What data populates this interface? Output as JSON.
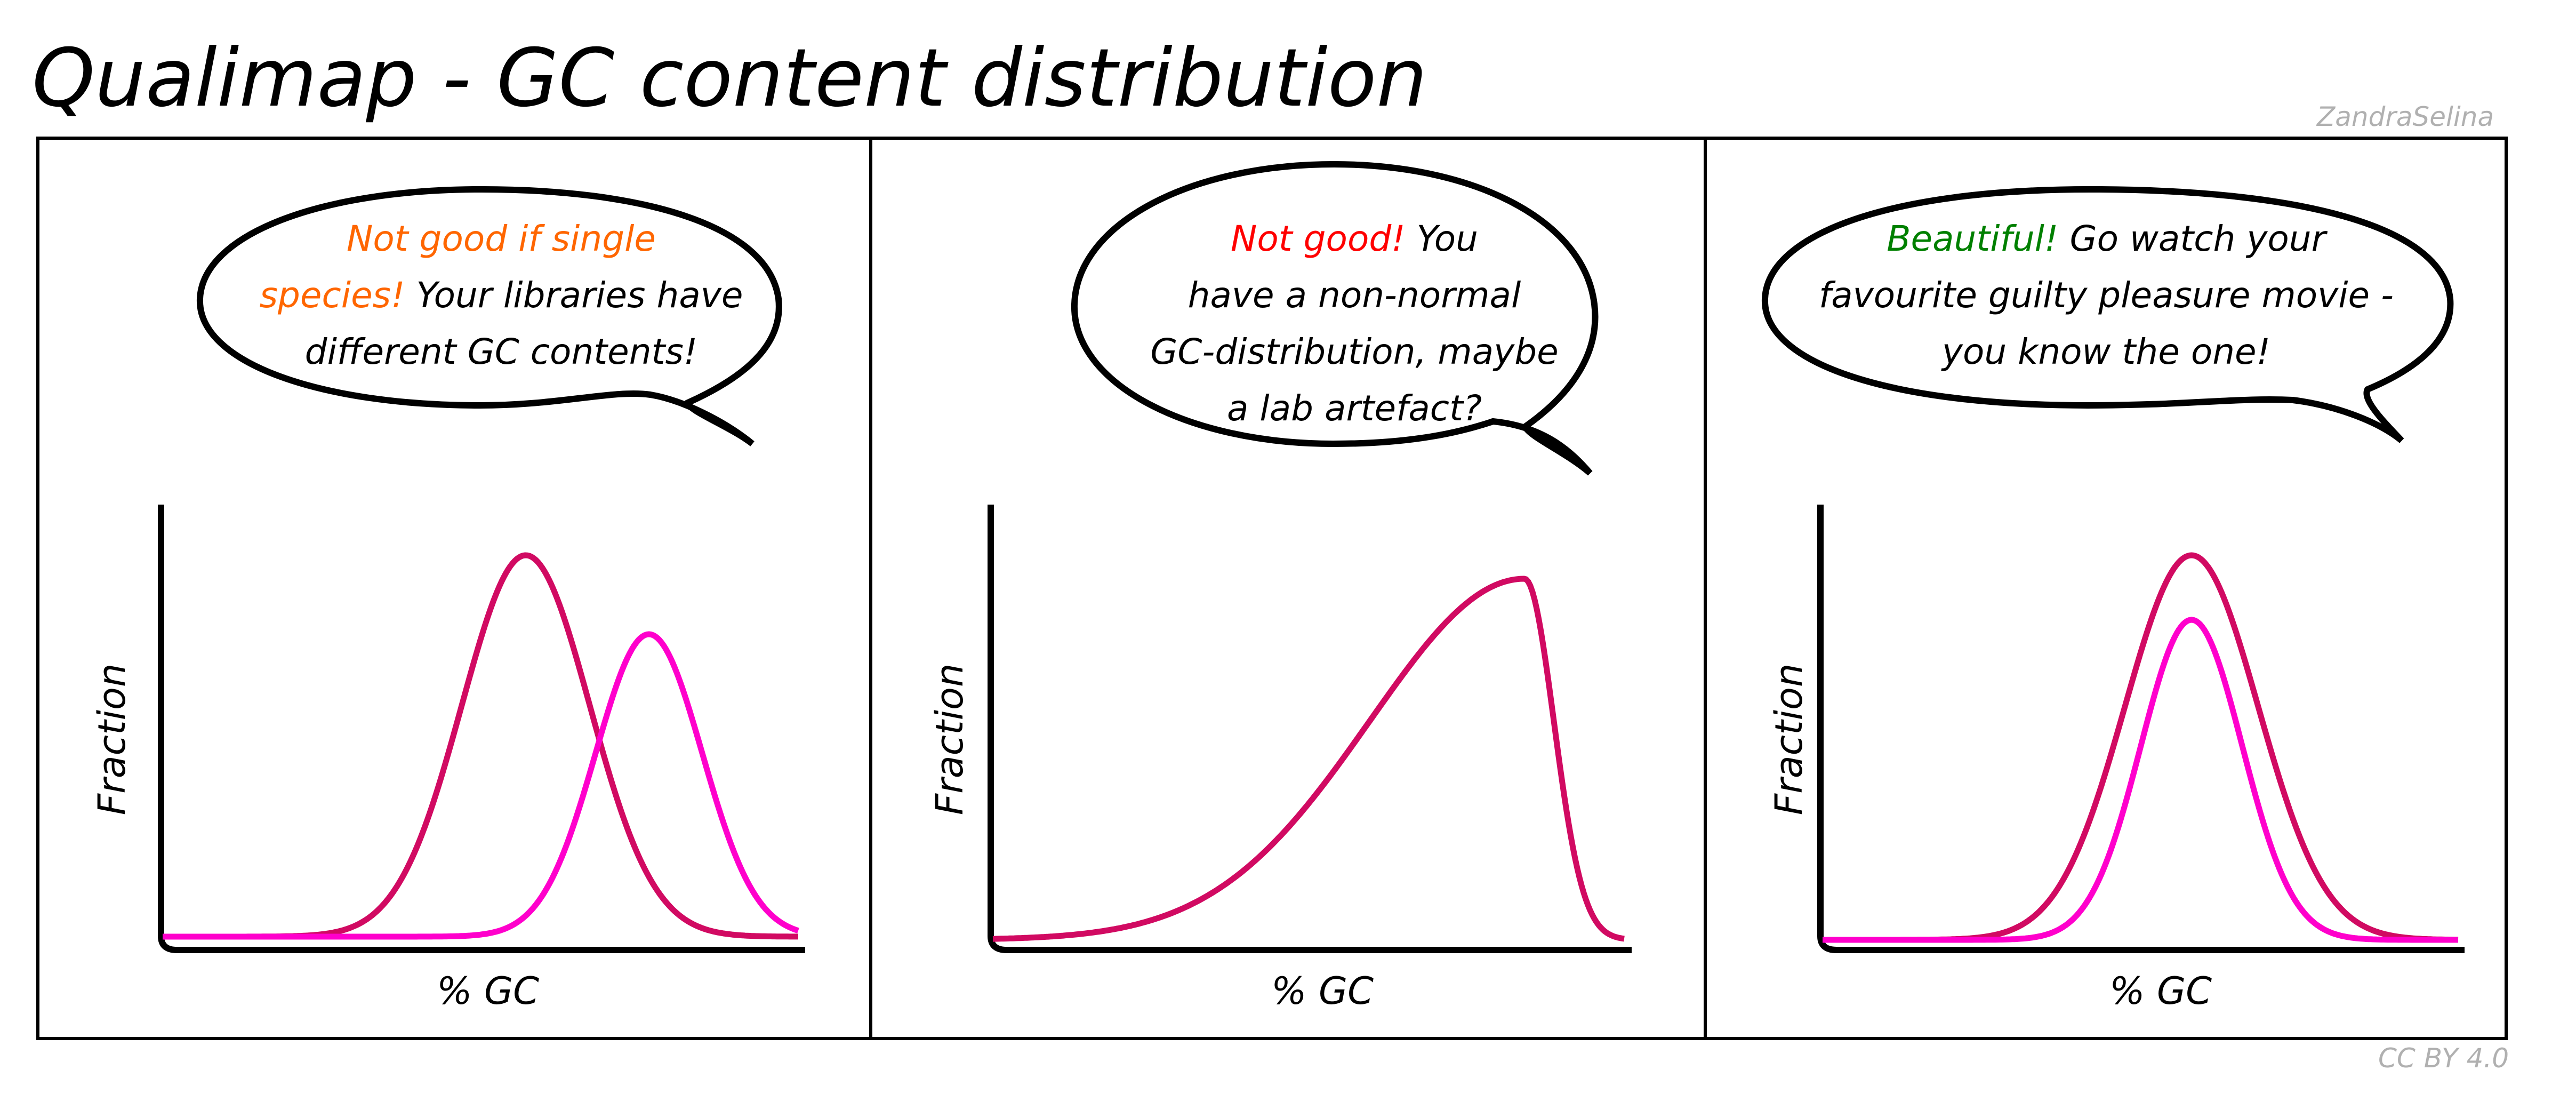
{
  "title": "Qualimap - GC content distribution",
  "author": "ZandraSelina",
  "license": "CC BY 4.0",
  "colors": {
    "orange": "#ff6600",
    "red": "#ff0000",
    "green": "#008000",
    "curve_dark": "#d10a62",
    "curve_pink": "#ff00cc"
  },
  "panels": [
    {
      "highlight": "Not good if single",
      "highlight2": "species!",
      "rest1": " Your libraries have",
      "line3": "different GC contents!",
      "xlabel": "% GC",
      "ylabel": "Fraction"
    },
    {
      "highlight": "Not good!",
      "rest1": " You",
      "line2": "have a non-normal",
      "line3": "GC-distribution, maybe",
      "line4": "a lab artefact?",
      "xlabel": "% GC",
      "ylabel": "Fraction"
    },
    {
      "highlight": "Beautiful!",
      "rest1": " Go watch your",
      "line2": "favourite guilty pleasure movie -",
      "line3": "you know the one!",
      "xlabel": "% GC",
      "ylabel": "Fraction"
    }
  ]
}
